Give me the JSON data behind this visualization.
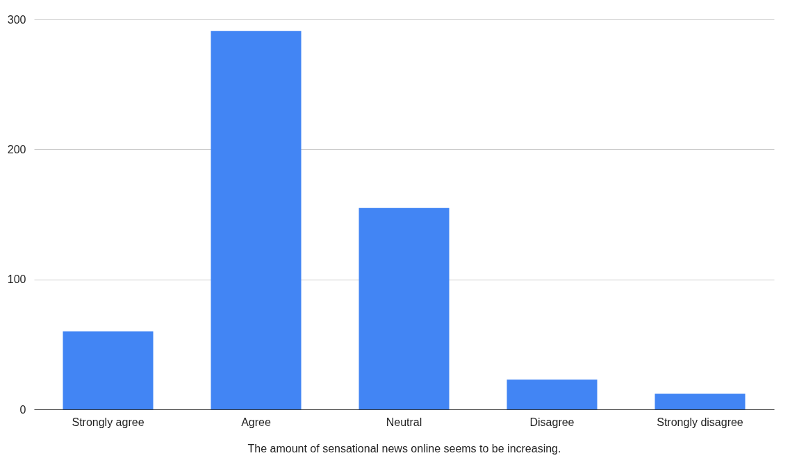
{
  "chart_data": {
    "type": "bar",
    "xlabel": "The amount of sensational news online seems to be increasing.",
    "categories": [
      "Strongly agree",
      "Agree",
      "Neutral",
      "Disagree",
      "Strongly disagree"
    ],
    "values": [
      60,
      291,
      155,
      23,
      12
    ],
    "color": "#4285f4",
    "ylim": [
      0,
      300
    ],
    "yticks": [
      0,
      100,
      200,
      300
    ],
    "grid": "y"
  }
}
